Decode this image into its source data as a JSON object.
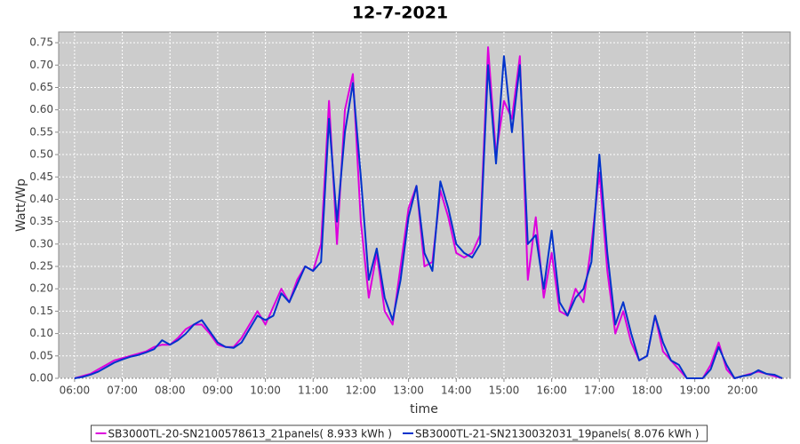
{
  "chart_data": {
    "type": "line",
    "title": "12-7-2021",
    "xlabel": "time",
    "ylabel": "Watt/Wp",
    "x": [
      360,
      370,
      380,
      390,
      400,
      410,
      420,
      430,
      440,
      450,
      460,
      470,
      480,
      490,
      500,
      510,
      520,
      530,
      540,
      550,
      560,
      570,
      580,
      590,
      600,
      610,
      620,
      630,
      640,
      650,
      660,
      670,
      680,
      690,
      700,
      710,
      720,
      730,
      740,
      750,
      760,
      770,
      780,
      790,
      800,
      810,
      820,
      830,
      840,
      850,
      860,
      870,
      880,
      890,
      900,
      910,
      920,
      930,
      940,
      950,
      960,
      970,
      980,
      990,
      1000,
      1010,
      1020,
      1030,
      1040,
      1050,
      1060,
      1070,
      1080,
      1090,
      1100,
      1110,
      1120,
      1130,
      1140,
      1150,
      1160,
      1170,
      1180,
      1190,
      1200,
      1210,
      1220,
      1230,
      1240,
      1250
    ],
    "series": [
      {
        "name": "SB3000TL-20-SN2100578613_21panels( 8.933 kWh )",
        "color": "#dd00dd",
        "values": [
          0,
          0.005,
          0.01,
          0.02,
          0.03,
          0.04,
          0.045,
          0.05,
          0.055,
          0.06,
          0.07,
          0.075,
          0.075,
          0.09,
          0.11,
          0.12,
          0.12,
          0.1,
          0.075,
          0.07,
          0.07,
          0.09,
          0.12,
          0.15,
          0.12,
          0.16,
          0.2,
          0.17,
          0.22,
          0.25,
          0.24,
          0.3,
          0.62,
          0.3,
          0.6,
          0.68,
          0.35,
          0.18,
          0.28,
          0.15,
          0.12,
          0.25,
          0.38,
          0.43,
          0.25,
          0.26,
          0.42,
          0.36,
          0.28,
          0.27,
          0.28,
          0.32,
          0.74,
          0.5,
          0.62,
          0.58,
          0.72,
          0.22,
          0.36,
          0.18,
          0.28,
          0.15,
          0.14,
          0.2,
          0.17,
          0.3,
          0.46,
          0.24,
          0.1,
          0.15,
          0.08,
          0.04,
          0.05,
          0.14,
          0.06,
          0.04,
          0.02,
          0,
          0,
          0,
          0.03,
          0.08,
          0.02,
          0,
          0.005,
          0.01,
          0.015,
          0.01,
          0.005,
          0
        ]
      },
      {
        "name": "SB3000TL-21-SN2130032031_19panels( 8.076 kWh )",
        "color": "#0033cc",
        "values": [
          0,
          0.003,
          0.008,
          0.015,
          0.025,
          0.035,
          0.042,
          0.048,
          0.052,
          0.058,
          0.065,
          0.085,
          0.075,
          0.085,
          0.1,
          0.12,
          0.13,
          0.105,
          0.08,
          0.07,
          0.068,
          0.08,
          0.11,
          0.14,
          0.13,
          0.14,
          0.19,
          0.17,
          0.21,
          0.25,
          0.24,
          0.26,
          0.58,
          0.35,
          0.55,
          0.66,
          0.45,
          0.22,
          0.29,
          0.18,
          0.13,
          0.22,
          0.36,
          0.43,
          0.28,
          0.24,
          0.44,
          0.38,
          0.3,
          0.28,
          0.27,
          0.3,
          0.7,
          0.48,
          0.72,
          0.55,
          0.7,
          0.3,
          0.32,
          0.2,
          0.33,
          0.17,
          0.14,
          0.18,
          0.2,
          0.26,
          0.5,
          0.28,
          0.12,
          0.17,
          0.1,
          0.04,
          0.05,
          0.14,
          0.08,
          0.04,
          0.03,
          0,
          0,
          0,
          0.02,
          0.07,
          0.03,
          0,
          0.005,
          0.008,
          0.018,
          0.01,
          0.008,
          0
        ]
      }
    ],
    "xlim": [
      340,
      1260
    ],
    "xticks": [
      {
        "value": 360,
        "label": "06:00"
      },
      {
        "value": 420,
        "label": "07:00"
      },
      {
        "value": 480,
        "label": "08:00"
      },
      {
        "value": 540,
        "label": "09:00"
      },
      {
        "value": 600,
        "label": "10:00"
      },
      {
        "value": 660,
        "label": "11:00"
      },
      {
        "value": 720,
        "label": "12:00"
      },
      {
        "value": 780,
        "label": "13:00"
      },
      {
        "value": 840,
        "label": "14:00"
      },
      {
        "value": 900,
        "label": "15:00"
      },
      {
        "value": 960,
        "label": "16:00"
      },
      {
        "value": 1020,
        "label": "17:00"
      },
      {
        "value": 1080,
        "label": "18:00"
      },
      {
        "value": 1140,
        "label": "19:00"
      },
      {
        "value": 1200,
        "label": "20:00"
      }
    ],
    "ylim": [
      0,
      0.774
    ],
    "yticks": [
      {
        "value": 0,
        "label": "0.00"
      },
      {
        "value": 0.05,
        "label": "0.05"
      },
      {
        "value": 0.1,
        "label": "0.10"
      },
      {
        "value": 0.15,
        "label": "0.15"
      },
      {
        "value": 0.2,
        "label": "0.20"
      },
      {
        "value": 0.25,
        "label": "0.25"
      },
      {
        "value": 0.3,
        "label": "0.30"
      },
      {
        "value": 0.35,
        "label": "0.35"
      },
      {
        "value": 0.4,
        "label": "0.40"
      },
      {
        "value": 0.45,
        "label": "0.45"
      },
      {
        "value": 0.5,
        "label": "0.50"
      },
      {
        "value": 0.55,
        "label": "0.55"
      },
      {
        "value": 0.6,
        "label": "0.60"
      },
      {
        "value": 0.65,
        "label": "0.65"
      },
      {
        "value": 0.7,
        "label": "0.70"
      },
      {
        "value": 0.75,
        "label": "0.75"
      }
    ],
    "grid": true,
    "legend": "bottom"
  }
}
